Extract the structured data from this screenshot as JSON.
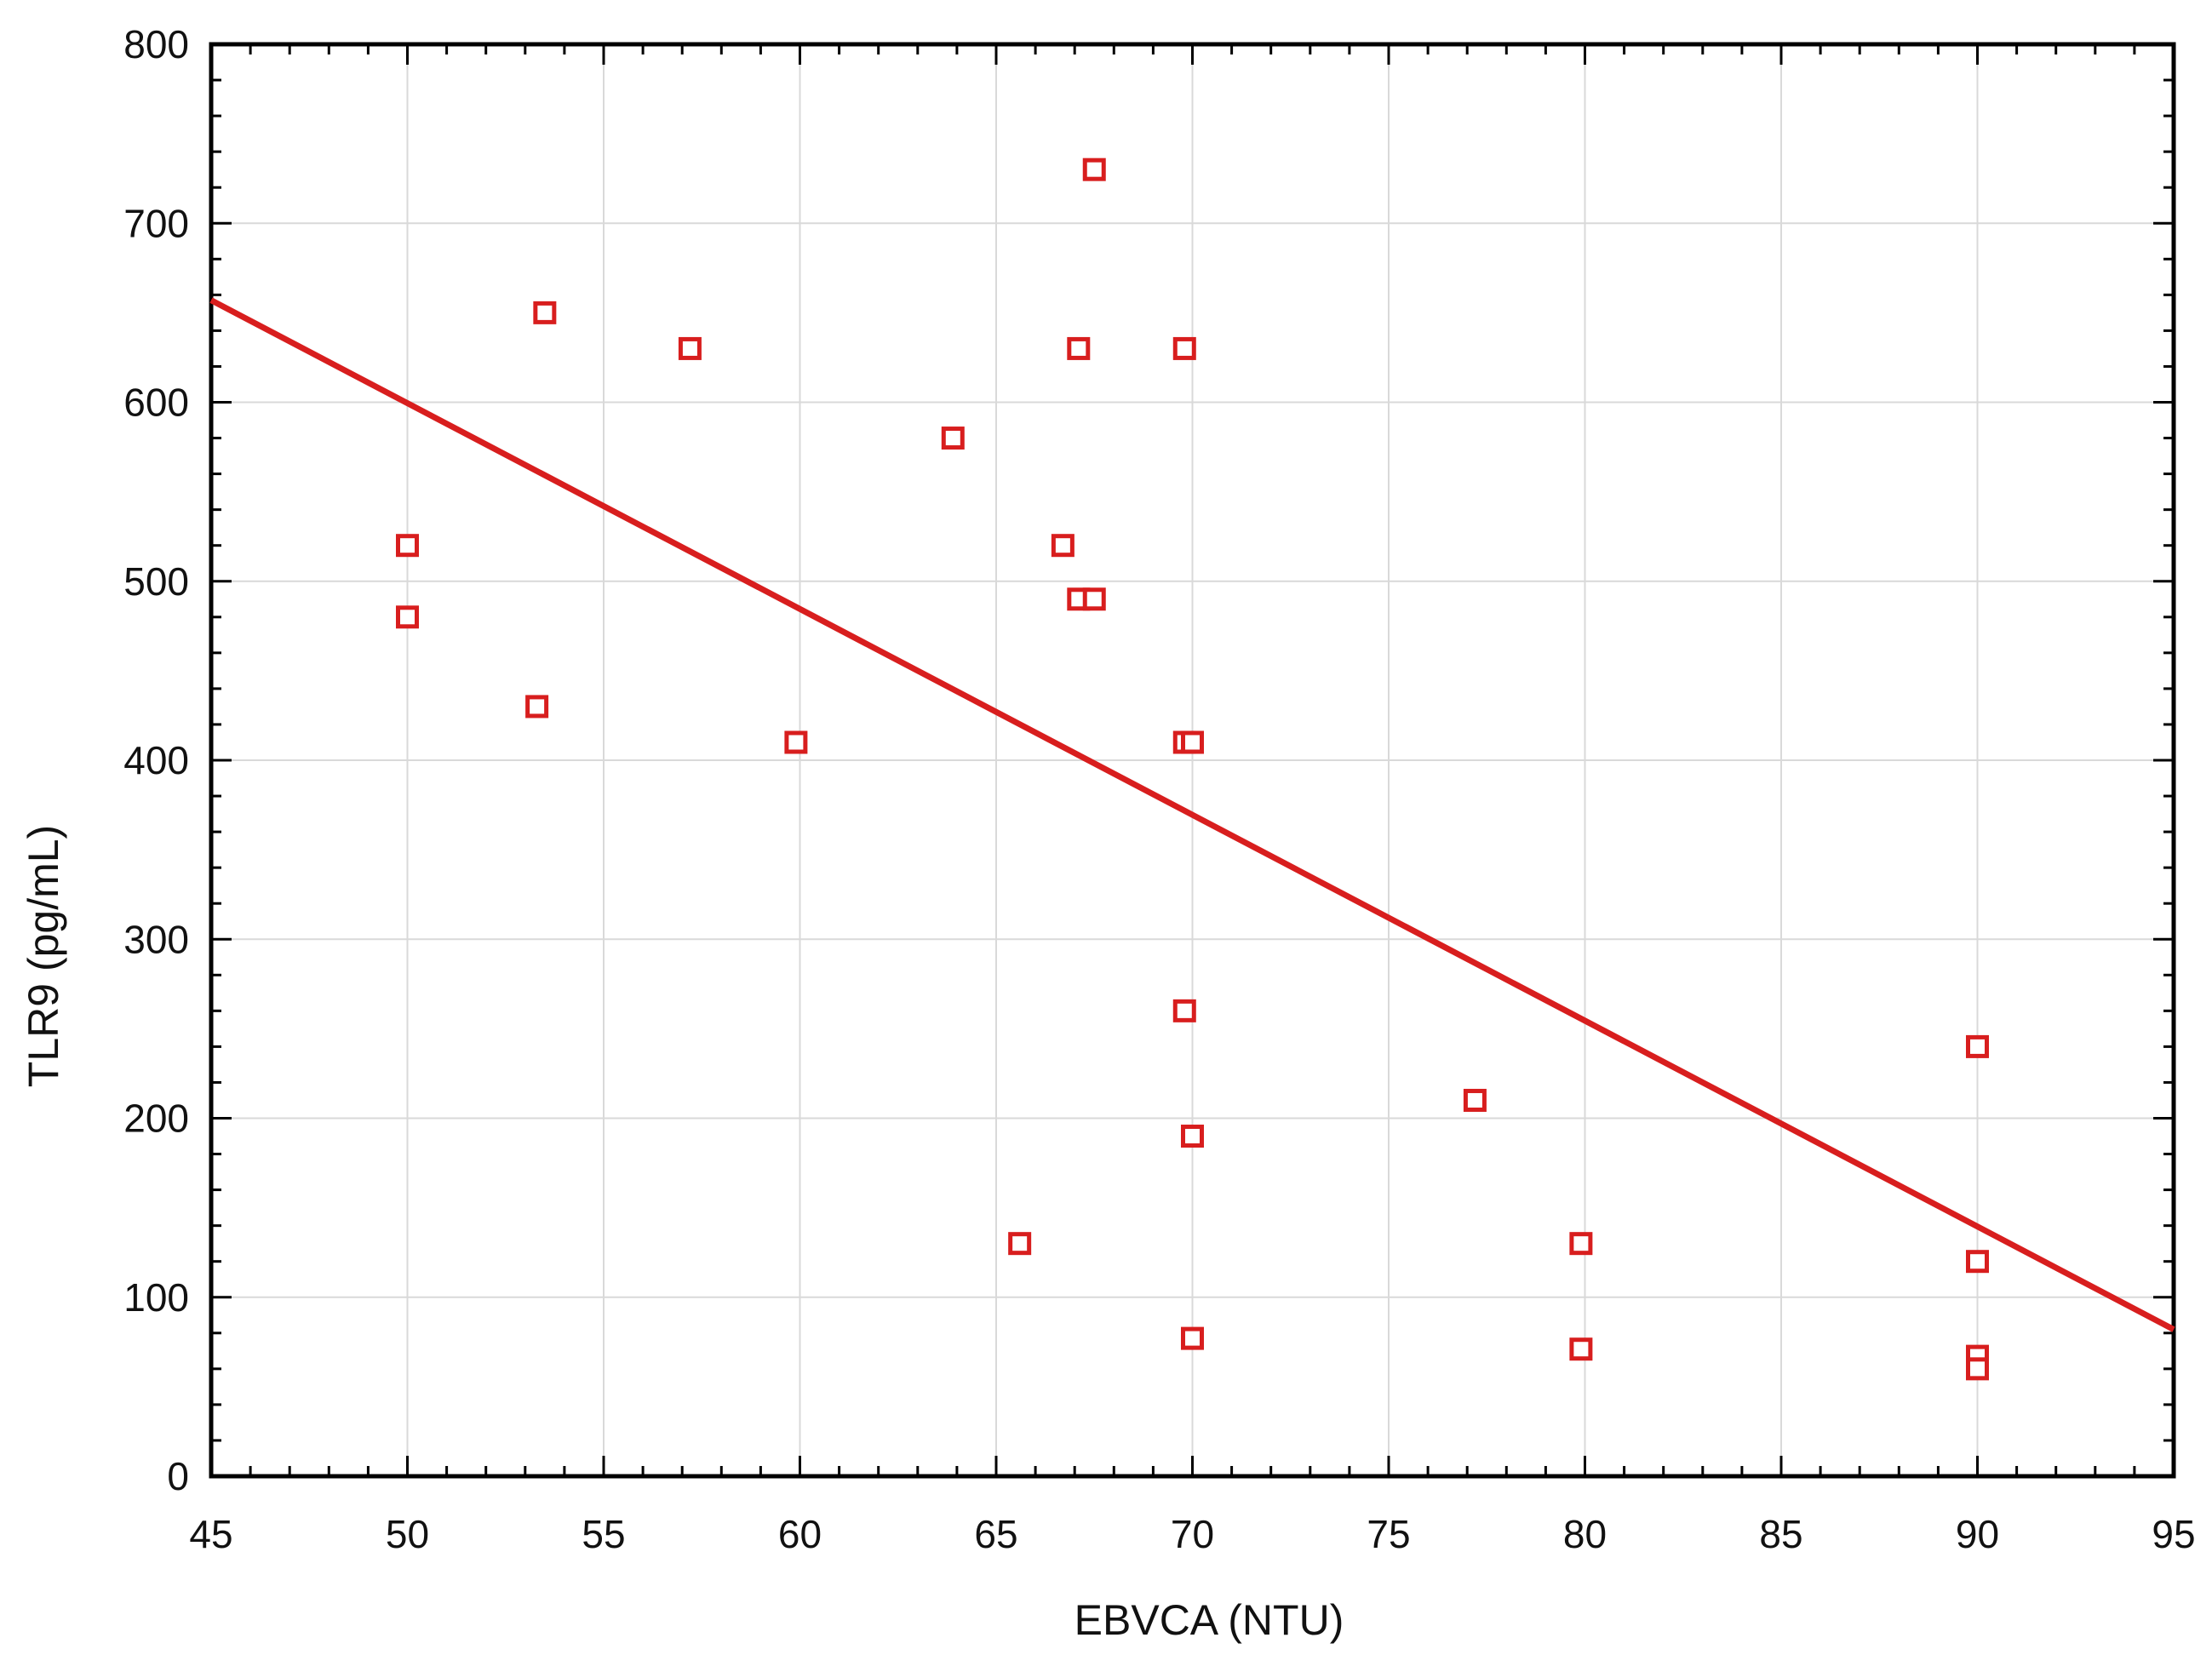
{
  "chart_data": {
    "type": "scatter",
    "title": "",
    "xlabel": "EBVCA (NTU)",
    "ylabel": "TLR9 (pg/mL)",
    "xlim": [
      45,
      95
    ],
    "ylim": [
      0,
      800
    ],
    "xticks": [
      45,
      50,
      55,
      60,
      65,
      70,
      75,
      80,
      85,
      90,
      95
    ],
    "yticks": [
      0,
      100,
      200,
      300,
      400,
      500,
      600,
      700,
      800
    ],
    "grid": true,
    "legend": "none",
    "marker": "open-square",
    "color": "#d81e1e",
    "points": [
      {
        "x": 50,
        "y": 520
      },
      {
        "x": 50,
        "y": 480
      },
      {
        "x": 53.5,
        "y": 650
      },
      {
        "x": 53.3,
        "y": 430
      },
      {
        "x": 57.2,
        "y": 630
      },
      {
        "x": 59.9,
        "y": 410
      },
      {
        "x": 63.9,
        "y": 580
      },
      {
        "x": 65.6,
        "y": 130
      },
      {
        "x": 66.7,
        "y": 520
      },
      {
        "x": 67.1,
        "y": 490
      },
      {
        "x": 67.5,
        "y": 490
      },
      {
        "x": 67.1,
        "y": 630
      },
      {
        "x": 67.5,
        "y": 730
      },
      {
        "x": 69.8,
        "y": 630
      },
      {
        "x": 69.8,
        "y": 410
      },
      {
        "x": 70.0,
        "y": 410
      },
      {
        "x": 69.8,
        "y": 260
      },
      {
        "x": 70.0,
        "y": 190
      },
      {
        "x": 70.0,
        "y": 77
      },
      {
        "x": 77.2,
        "y": 210
      },
      {
        "x": 79.9,
        "y": 130
      },
      {
        "x": 79.9,
        "y": 71
      },
      {
        "x": 90.0,
        "y": 240
      },
      {
        "x": 90.0,
        "y": 120
      },
      {
        "x": 90.0,
        "y": 67
      },
      {
        "x": 90.0,
        "y": 60
      }
    ],
    "regression_line": {
      "x": [
        45,
        95
      ],
      "y": [
        657,
        82
      ]
    }
  }
}
